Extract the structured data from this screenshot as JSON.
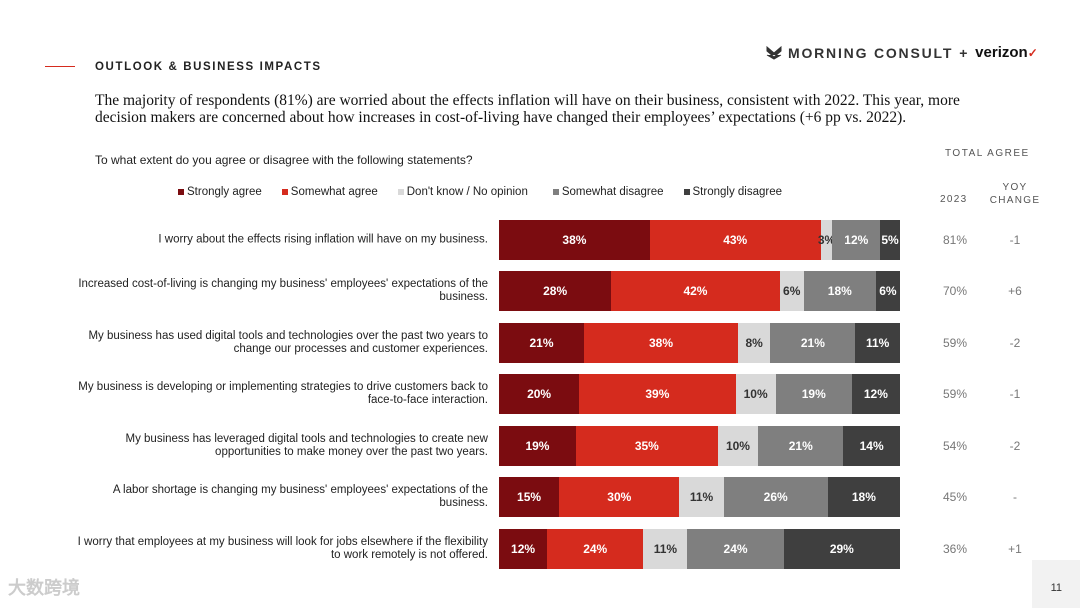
{
  "header": {
    "section": "OUTLOOK & BUSINESS IMPACTS",
    "logo_text": "MORNING CONSULT",
    "logo_plus": "+",
    "logo_partner": "verizon",
    "logo_check": "✓"
  },
  "headline": "The majority of respondents (81%) are worried about the effects inflation will have on their business, consistent with 2022. This year, more decision makers are concerned about how increases in cost-of-living have changed their employees’ expectations (+6 pp vs. 2022).",
  "page_number": "11",
  "watermark": "大数跨境",
  "chart_data": {
    "type": "bar",
    "orientation": "horizontal-stacked",
    "title": "To what extent do you agree or disagree with the following statements?",
    "legend_position": "top",
    "series": [
      {
        "name": "Strongly agree",
        "color": "#7b0c10",
        "values": [
          38,
          28,
          21,
          20,
          19,
          15,
          12
        ]
      },
      {
        "name": "Somewhat agree",
        "color": "#d52b1e",
        "values": [
          43,
          42,
          38,
          39,
          35,
          30,
          24
        ]
      },
      {
        "name": "Don't know / No opinion",
        "color": "#d9d9d9",
        "values": [
          3,
          6,
          8,
          10,
          10,
          11,
          11
        ]
      },
      {
        "name": "Somewhat disagree",
        "color": "#7f7f7f",
        "values": [
          12,
          18,
          21,
          19,
          21,
          26,
          24
        ]
      },
      {
        "name": "Strongly disagree",
        "color": "#3f3f3f",
        "values": [
          5,
          6,
          11,
          12,
          14,
          18,
          29
        ]
      }
    ],
    "categories": [
      "I worry about the effects rising inflation will have on my business.",
      "Increased cost-of-living is changing my business' employees' expectations of the business.",
      "My business has used digital tools and technologies over the past two years to change our processes and customer experiences.",
      "My business is developing or implementing strategies to drive customers back to face-to-face interaction.",
      "My business has leveraged digital tools and technologies to create new opportunities to make money over the past two years.",
      "A labor shortage is changing my business' employees' expectations of the business.",
      "I worry that employees at my business will look for jobs elsewhere if the flexibility to work remotely is not offered."
    ],
    "total_agree_header": "TOTAL AGREE",
    "year_header": "2023",
    "yoy_header": "YOY CHANGE",
    "total_agree_2023": [
      "81%",
      "70%",
      "59%",
      "59%",
      "54%",
      "45%",
      "36%"
    ],
    "yoy_change": [
      "-1",
      "+6",
      "-2",
      "-1",
      "-2",
      "-",
      "+1"
    ]
  }
}
